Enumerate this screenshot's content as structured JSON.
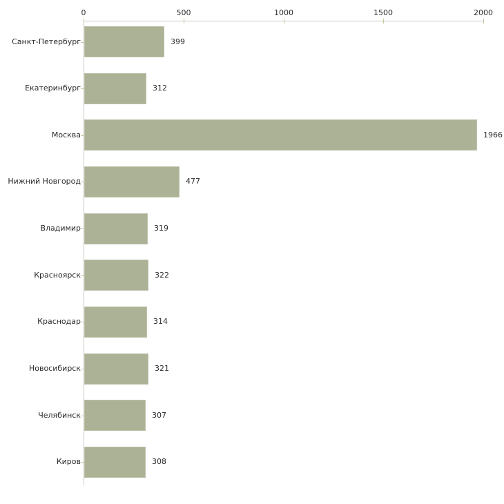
{
  "chart_data": {
    "type": "bar",
    "orientation": "horizontal",
    "title": "",
    "xlabel": "",
    "ylabel": "",
    "grid": false,
    "legend": null,
    "categories": [
      "Санкт-Петербург",
      "Екатеринбург",
      "Москва",
      "Нижний Новгород",
      "Владимир",
      "Красноярск",
      "Краснодар",
      "Новосибирск",
      "Челябинск",
      "Киров"
    ],
    "values": [
      399,
      312,
      1966,
      477,
      319,
      322,
      314,
      321,
      307,
      308
    ],
    "value_labels": [
      "399",
      "312",
      "1966",
      "477",
      "319",
      "322",
      "314",
      "321",
      "307",
      "308"
    ],
    "x_axis": {
      "position": "top",
      "min": 0,
      "max": 2000,
      "ticks": [
        0,
        500,
        1000,
        1500,
        2000
      ],
      "tick_labels": [
        "0",
        "500",
        "1000",
        "1500",
        "2000"
      ]
    },
    "colors": {
      "bar_fill": "#acb295",
      "bar_border": "#bcc2aa",
      "axis_line": "#c9c9c1",
      "tick_mark": "#c4c69e",
      "text": "#2a2a2a",
      "background": "#ffffff"
    }
  }
}
